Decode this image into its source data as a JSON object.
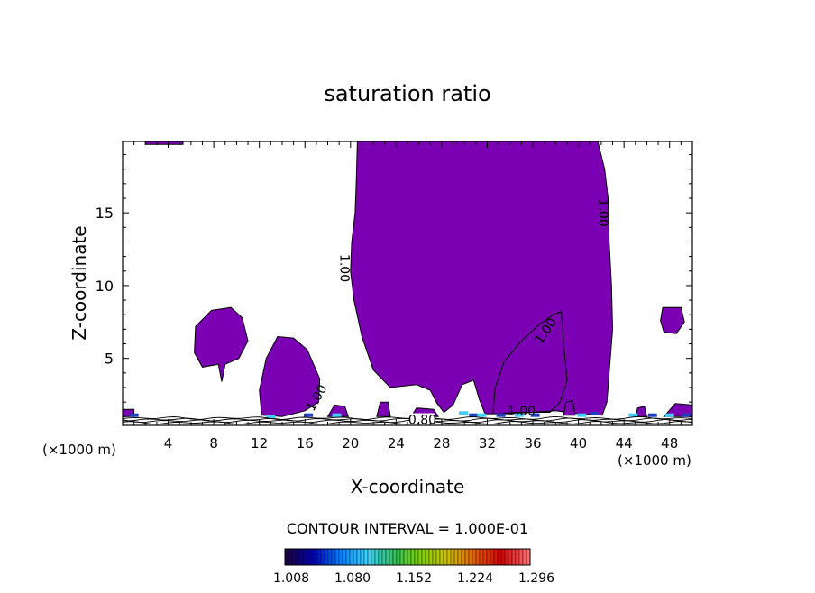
{
  "chart_data": {
    "type": "contour",
    "title": "saturation ratio",
    "xlabel": "X-coordinate",
    "ylabel": "Z-coordinate",
    "x_unit_left": "(×1000 m)",
    "x_unit_right": "(×1000 m)",
    "xlim": [
      0,
      50
    ],
    "ylim": [
      0.4,
      19.9
    ],
    "x_ticks": [
      4,
      8,
      12,
      16,
      20,
      24,
      28,
      32,
      36,
      40,
      44,
      48
    ],
    "y_ticks": [
      5,
      10,
      15
    ],
    "fill_color": "#7b00b4",
    "line_color": "#000000",
    "contour_labels": [
      {
        "text": "1.00",
        "x": 19.5,
        "y": 11.2,
        "angle": 90
      },
      {
        "text": "1.00",
        "x": 42.2,
        "y": 15.0,
        "angle": 90
      },
      {
        "text": "1.00",
        "x": 37.1,
        "y": 6.9,
        "angle": -55
      },
      {
        "text": "1.00",
        "x": 17.0,
        "y": 2.3,
        "angle": -60
      },
      {
        "text": "1.00",
        "x": 35.0,
        "y": 1.4,
        "angle": 0
      },
      {
        "text": "0.80",
        "x": 26.3,
        "y": 0.8,
        "angle": 0
      }
    ],
    "contour_interval_text": "CONTOUR INTERVAL = 1.000E-01",
    "colorbar": {
      "labels": [
        "1.008",
        "1.080",
        "1.152",
        "1.224",
        "1.296"
      ],
      "colors": [
        "#1a0040",
        "#0000b0",
        "#0080ff",
        "#40d0ff",
        "#30c060",
        "#80d000",
        "#d0c000",
        "#e06000",
        "#d00000",
        "#ff7070"
      ]
    }
  }
}
